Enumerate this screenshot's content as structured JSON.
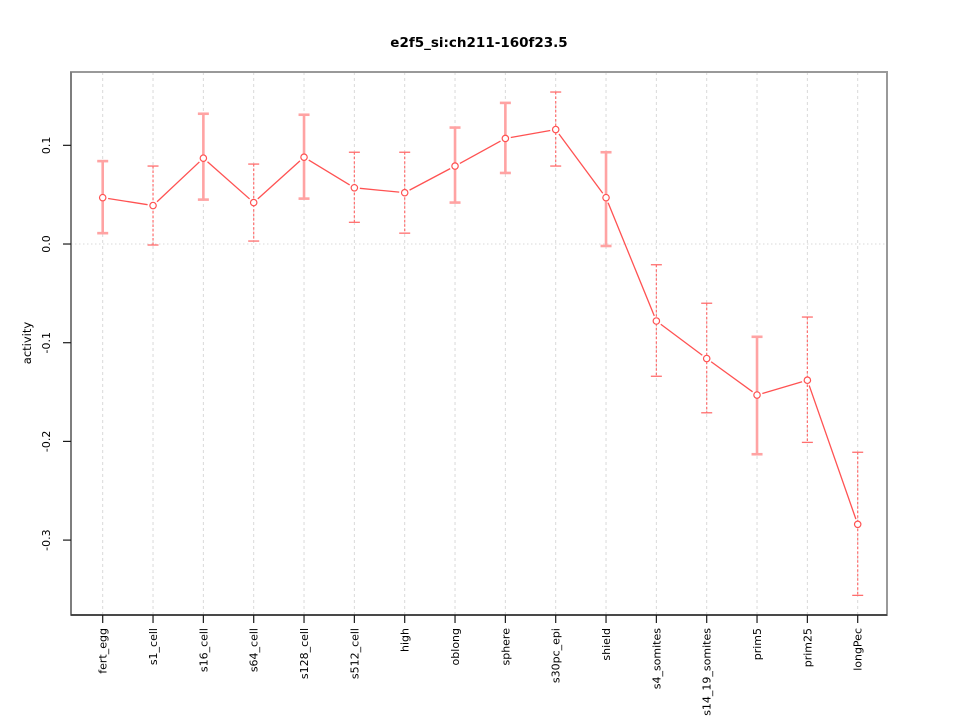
{
  "page": {
    "background": "#ffffff"
  },
  "chart_data": {
    "type": "line",
    "title": "e2f5_si:ch211-160f23.5",
    "xlabel": "",
    "ylabel": "activity",
    "legend": "none",
    "grid": {
      "vertical_dashed_per_category": true,
      "zero_line_dotted": true
    },
    "marker": "open-circle",
    "categories": [
      "fert_egg",
      "s1_cell",
      "s16_cell",
      "s64_cell",
      "s128_cell",
      "s512_cell",
      "high",
      "oblong",
      "sphere",
      "s30pc_epi",
      "shield",
      "s4_somites",
      "s14_19_somites",
      "prim5",
      "prim25",
      "longPec"
    ],
    "series": [
      {
        "name": "activity",
        "values": [
          0.047,
          0.039,
          0.087,
          0.042,
          0.088,
          0.057,
          0.052,
          0.079,
          0.107,
          0.116,
          0.047,
          -0.078,
          -0.116,
          -0.153,
          -0.138,
          -0.284
        ],
        "error_low": [
          0.011,
          -0.001,
          0.045,
          0.003,
          0.046,
          0.022,
          0.011,
          0.042,
          0.072,
          0.079,
          -0.002,
          -0.134,
          -0.171,
          -0.213,
          -0.201,
          -0.356
        ],
        "error_high": [
          0.084,
          0.079,
          0.132,
          0.081,
          0.131,
          0.093,
          0.093,
          0.118,
          0.143,
          0.154,
          0.093,
          -0.021,
          -0.06,
          -0.094,
          -0.074,
          -0.211
        ],
        "error_bar_styles": [
          "wide",
          "narrow",
          "wide",
          "narrow",
          "wide",
          "narrow",
          "narrow",
          "wide",
          "wide",
          "narrow",
          "wide",
          "narrow",
          "narrow",
          "wide",
          "narrow",
          "narrow"
        ]
      }
    ],
    "yticks": [
      0.1,
      0.0,
      -0.1,
      -0.2,
      -0.3
    ],
    "ytick_labels": [
      "0.1",
      "0.0",
      "-0.1",
      "-0.2",
      "-0.3"
    ],
    "ylim": [
      -0.3759,
      0.1743
    ],
    "colors": {
      "line": "#ff5252",
      "marker_stroke": "#ff5252",
      "marker_fill": "#ffffff",
      "error_wide": "#ffa3a3",
      "error_narrow": "#ff6e6e",
      "grid": "#d9d9d9",
      "box": "#999999",
      "axis": "#1a1a1a",
      "text": "#000000",
      "background": "#ffffff"
    }
  }
}
